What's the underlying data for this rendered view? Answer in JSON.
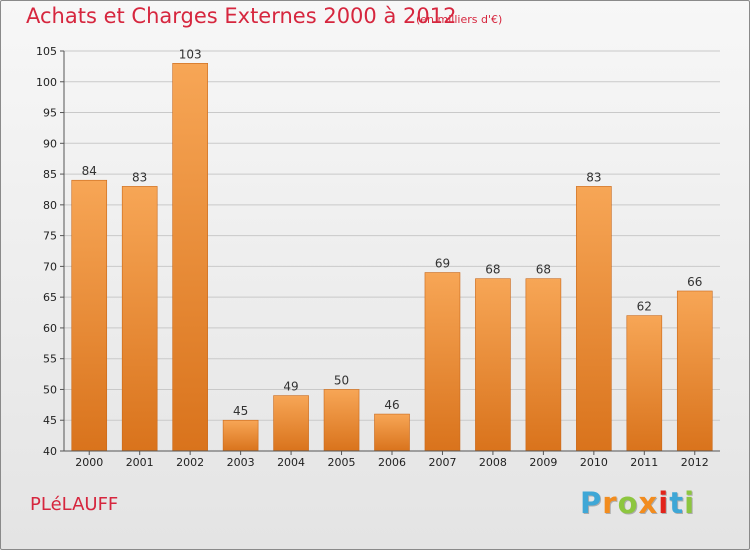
{
  "header": {
    "title": "Achats et Charges Externes 2000 à 2012",
    "subtitle": "(en milliers d'€)"
  },
  "footer": {
    "commune": "PLéLAUFF",
    "brand": [
      "P",
      "r",
      "o",
      "x",
      "i",
      "t",
      "i"
    ],
    "brand_colors": [
      "#3fa7d6",
      "#f28c1e",
      "#8dc63f",
      "#f28c1e",
      "#e2231a",
      "#3fa7d6",
      "#8dc63f"
    ]
  },
  "colors": {
    "bar_top": "#f7a656",
    "bar_bottom": "#d9731c",
    "title": "#d6263e"
  },
  "chart_data": {
    "type": "bar",
    "categories": [
      "2000",
      "2001",
      "2002",
      "2003",
      "2004",
      "2005",
      "2006",
      "2007",
      "2008",
      "2009",
      "2010",
      "2011",
      "2012"
    ],
    "values": [
      84,
      83,
      103,
      45,
      49,
      50,
      46,
      69,
      68,
      68,
      83,
      62,
      66
    ],
    "title": "Achats et Charges Externes 2000 à 2012",
    "subtitle": "(en milliers d'€)",
    "xlabel": "",
    "ylabel": "",
    "ylim": [
      40,
      105
    ],
    "yticks": [
      40,
      45,
      50,
      55,
      60,
      65,
      70,
      75,
      80,
      85,
      90,
      95,
      100,
      105
    ],
    "grid": true,
    "legend": "none"
  }
}
